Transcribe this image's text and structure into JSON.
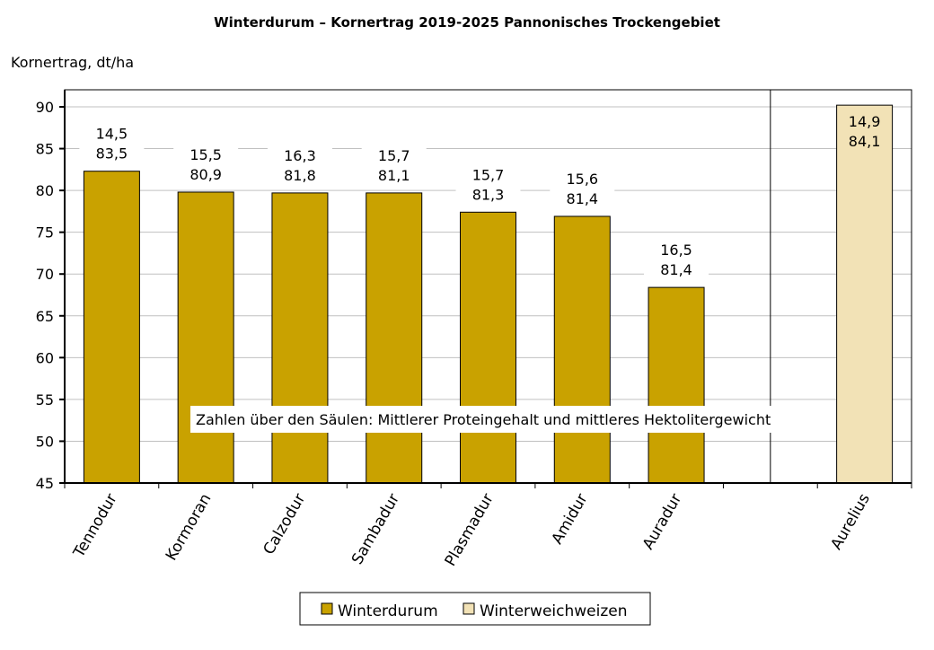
{
  "chart_data": {
    "type": "bar",
    "title": "Winterdurum – Kornertrag 2019-2025 Pannonisches Trockengebiet",
    "ylabel": "Kornertrag, dt/ha",
    "xlabel": "",
    "ylim": [
      45,
      90
    ],
    "yticks": [
      45,
      50,
      55,
      60,
      65,
      70,
      75,
      80,
      85,
      90
    ],
    "grid": true,
    "legend_position": "bottom",
    "annotation": "Zahlen über den Säulen: Mittlerer Proteingehalt und mittleres Hektolitergewicht",
    "categories": [
      "Tennodur",
      "Kormoran",
      "Calzodur",
      "Sambadur",
      "Plasmadur",
      "Amidur",
      "Auradur",
      "",
      "Aurelius"
    ],
    "series": [
      {
        "name": "Winterdurum",
        "color": "#C9A200",
        "values": [
          82.3,
          79.8,
          79.7,
          79.7,
          77.4,
          76.9,
          68.4,
          null,
          null
        ],
        "labels": [
          [
            "14,5",
            "83,5"
          ],
          [
            "15,5",
            "80,9"
          ],
          [
            "16,3",
            "81,8"
          ],
          [
            "15,7",
            "81,1"
          ],
          [
            "15,7",
            "81,3"
          ],
          [
            "15,6",
            "81,4"
          ],
          [
            "16,5",
            "81,4"
          ],
          null,
          null
        ]
      },
      {
        "name": "Winterweichweizen",
        "color": "#F2E2B6",
        "values": [
          null,
          null,
          null,
          null,
          null,
          null,
          null,
          null,
          90.2
        ],
        "labels": [
          null,
          null,
          null,
          null,
          null,
          null,
          null,
          null,
          [
            "14,9",
            "84,1"
          ]
        ]
      }
    ]
  }
}
